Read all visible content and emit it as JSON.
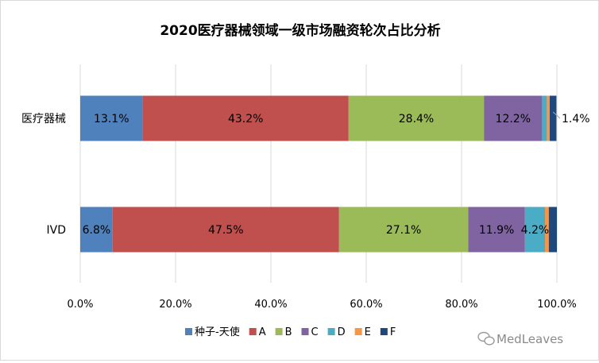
{
  "chart_data": {
    "type": "bar",
    "orientation": "horizontal",
    "stacked": "percent",
    "title": "2020医疗器械领域一级市场融资轮次占比分析",
    "categories": [
      "医疗器械",
      "IVD"
    ],
    "xlim": [
      0,
      100
    ],
    "x_ticks": [
      "0.0%",
      "20.0%",
      "40.0%",
      "60.0%",
      "80.0%",
      "100.0%"
    ],
    "grid": "vertical",
    "legend_position": "bottom",
    "series": [
      {
        "name": "种子-天使",
        "color": "#4F81BD",
        "values": [
          13.1,
          6.8
        ],
        "labels": [
          "13.1%",
          "6.8%"
        ]
      },
      {
        "name": "A",
        "color": "#C0504D",
        "values": [
          43.2,
          47.5
        ],
        "labels": [
          "43.2%",
          "47.5%"
        ]
      },
      {
        "name": "B",
        "color": "#9BBB59",
        "values": [
          28.4,
          27.1
        ],
        "labels": [
          "28.4%",
          "27.1%"
        ]
      },
      {
        "name": "C",
        "color": "#8064A2",
        "values": [
          12.2,
          11.9
        ],
        "labels": [
          "12.2%",
          "11.9%"
        ]
      },
      {
        "name": "D",
        "color": "#4BACC6",
        "values": [
          1.0,
          4.2
        ],
        "labels": [
          "",
          "4.2%"
        ]
      },
      {
        "name": "E",
        "color": "#F79646",
        "values": [
          0.6,
          0.8
        ],
        "labels": [
          "",
          ""
        ]
      },
      {
        "name": "F",
        "color": "#1F497D",
        "values": [
          1.4,
          1.7
        ],
        "labels": [
          "1.4%",
          ""
        ]
      }
    ]
  },
  "watermark": {
    "text": "MedLeaves",
    "icon": "wechat-icon"
  }
}
